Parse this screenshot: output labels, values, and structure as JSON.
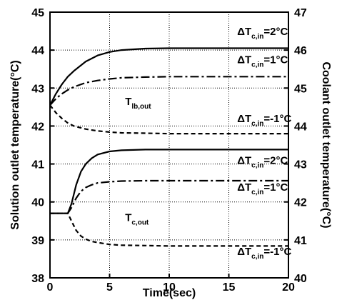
{
  "chart_data": {
    "type": "line",
    "xlabel": "Time(sec)",
    "ylabel_left": "Solution outlet temperature(°C)",
    "ylabel_right": "Coolant outlet temperature(°C)",
    "xlim": [
      0,
      20
    ],
    "ylim_left": [
      38,
      45
    ],
    "ylim_right": [
      40,
      47
    ],
    "x_ticks": [
      0,
      5,
      10,
      15,
      20
    ],
    "y_ticks_left": [
      38,
      39,
      40,
      41,
      42,
      43,
      44,
      45
    ],
    "y_ticks_right": [
      40,
      41,
      42,
      43,
      44,
      45,
      46,
      47
    ],
    "grid": true,
    "series": [
      {
        "group": "T_lb,out",
        "axis": "left",
        "style": "solid",
        "x": [
          0,
          0.5,
          1,
          1.5,
          2,
          3,
          4,
          5,
          6,
          8,
          10,
          15,
          20
        ],
        "y": [
          42.55,
          42.85,
          43.1,
          43.3,
          43.45,
          43.7,
          43.86,
          43.95,
          44.0,
          44.04,
          44.05,
          44.05,
          44.05
        ]
      },
      {
        "group": "T_lb,out",
        "axis": "left",
        "style": "dashdot",
        "x": [
          0,
          0.5,
          1,
          1.5,
          2,
          3,
          4,
          5,
          6,
          8,
          10,
          15,
          20
        ],
        "y": [
          42.55,
          42.72,
          42.85,
          42.95,
          43.03,
          43.14,
          43.2,
          43.24,
          43.27,
          43.29,
          43.3,
          43.3,
          43.3
        ]
      },
      {
        "group": "T_lb,out",
        "axis": "left",
        "style": "dashed",
        "x": [
          0,
          0.5,
          1,
          1.5,
          2,
          3,
          4,
          5,
          6,
          8,
          10,
          15,
          20
        ],
        "y": [
          42.55,
          42.35,
          42.2,
          42.08,
          42.0,
          41.92,
          41.87,
          41.84,
          41.82,
          41.81,
          41.8,
          41.8,
          41.8
        ]
      },
      {
        "group": "T_c,out",
        "axis": "left",
        "style": "solid",
        "x": [
          0,
          1.5,
          1.8,
          2.2,
          2.6,
          3,
          3.5,
          4,
          5,
          6,
          8,
          10,
          15,
          20
        ],
        "y": [
          39.7,
          39.7,
          39.95,
          40.45,
          40.8,
          41.0,
          41.15,
          41.25,
          41.33,
          41.36,
          41.38,
          41.38,
          41.38,
          41.38
        ]
      },
      {
        "group": "T_c,out",
        "axis": "left",
        "style": "dashdot",
        "x": [
          0,
          1.5,
          1.8,
          2.2,
          2.6,
          3,
          3.5,
          4,
          5,
          6,
          8,
          10,
          15,
          20
        ],
        "y": [
          39.7,
          39.7,
          39.85,
          40.1,
          40.28,
          40.38,
          40.45,
          40.5,
          40.53,
          40.55,
          40.56,
          40.56,
          40.56,
          40.56
        ]
      },
      {
        "group": "T_c,out",
        "axis": "left",
        "style": "dashed",
        "x": [
          0,
          1.5,
          1.8,
          2.2,
          2.6,
          3,
          3.5,
          4,
          5,
          6,
          8,
          10,
          15,
          20
        ],
        "y": [
          39.7,
          39.7,
          39.5,
          39.25,
          39.1,
          39.02,
          38.96,
          38.93,
          38.88,
          38.86,
          38.85,
          38.84,
          38.84,
          38.84
        ]
      }
    ],
    "annotations": [
      {
        "main": "ΔT",
        "sub": "c,in",
        "rest": "=2°C",
        "x": 15.7,
        "y": 44.4
      },
      {
        "main": "ΔT",
        "sub": "c,in",
        "rest": "=1°C",
        "x": 15.7,
        "y": 43.65
      },
      {
        "main": "ΔT",
        "sub": "c,in",
        "rest": "=-1°C",
        "x": 15.7,
        "y": 42.1
      },
      {
        "main": "T",
        "sub": "lb,out",
        "rest": "",
        "x": 6.3,
        "y": 42.55
      },
      {
        "main": "ΔT",
        "sub": "c,in",
        "rest": "=2°C",
        "x": 15.7,
        "y": 41.0
      },
      {
        "main": "ΔT",
        "sub": "c,in",
        "rest": "=1°C",
        "x": 15.7,
        "y": 40.3
      },
      {
        "main": "T",
        "sub": "c,out",
        "rest": "",
        "x": 6.3,
        "y": 39.5
      },
      {
        "main": "ΔT",
        "sub": "c,in",
        "rest": "=-1°C",
        "x": 15.7,
        "y": 38.6
      }
    ]
  }
}
